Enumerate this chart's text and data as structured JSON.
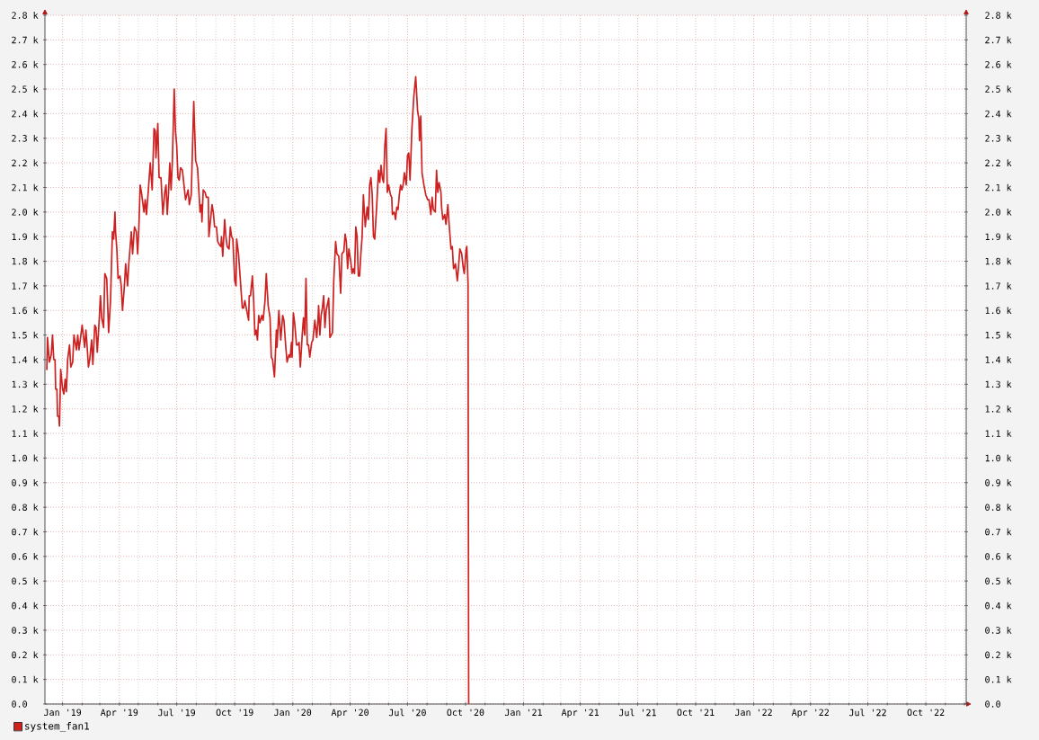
{
  "chart_data": {
    "type": "line",
    "x": [
      "2018-12-07",
      "2018-12-08",
      "2018-12-11",
      "2018-12-14",
      "2018-12-16",
      "2018-12-18",
      "2018-12-20",
      "2018-12-21",
      "2018-12-23",
      "2018-12-24",
      "2018-12-26",
      "2018-12-27",
      "2018-12-29",
      "2019-01-01",
      "2019-01-03",
      "2019-01-05",
      "2019-01-07",
      "2019-01-09",
      "2019-01-12",
      "2019-01-14",
      "2019-01-17",
      "2019-01-19",
      "2019-01-21",
      "2019-01-23",
      "2019-01-25",
      "2019-01-27",
      "2019-01-30",
      "2019-02-01",
      "2019-02-05",
      "2019-02-07",
      "2019-02-09",
      "2019-02-11",
      "2019-02-13",
      "2019-02-16",
      "2019-02-18",
      "2019-02-21",
      "2019-02-23",
      "2019-02-25",
      "2019-02-28",
      "2019-03-02",
      "2019-03-04",
      "2019-03-07",
      "2019-03-09",
      "2019-03-12",
      "2019-03-15",
      "2019-03-18",
      "2019-03-21",
      "2019-03-23",
      "2019-03-25",
      "2019-03-26",
      "2019-03-28",
      "2019-03-30",
      "2019-04-02",
      "2019-04-04",
      "2019-04-06",
      "2019-04-09",
      "2019-04-11",
      "2019-04-14",
      "2019-04-16",
      "2019-04-20",
      "2019-04-22",
      "2019-04-25",
      "2019-04-28",
      "2019-04-30",
      "2019-05-02",
      "2019-05-04",
      "2019-05-06",
      "2019-05-10",
      "2019-05-12",
      "2019-05-14",
      "2019-05-17",
      "2019-05-20",
      "2019-05-23",
      "2019-05-26",
      "2019-05-28",
      "2019-05-29",
      "2019-06-01",
      "2019-06-03",
      "2019-06-06",
      "2019-06-09",
      "2019-06-12",
      "2019-06-14",
      "2019-06-16",
      "2019-06-18",
      "2019-06-20",
      "2019-06-22",
      "2019-06-24",
      "2019-06-27",
      "2019-06-29",
      "2019-07-01",
      "2019-07-03",
      "2019-07-05",
      "2019-07-07",
      "2019-07-10",
      "2019-07-15",
      "2019-07-19",
      "2019-07-21",
      "2019-07-24",
      "2019-07-28",
      "2019-07-31",
      "2019-08-03",
      "2019-08-07",
      "2019-08-09",
      "2019-08-10",
      "2019-08-12",
      "2019-08-15",
      "2019-08-17",
      "2019-08-20",
      "2019-08-21",
      "2019-08-26",
      "2019-08-28",
      "2019-08-30",
      "2019-09-02",
      "2019-09-04",
      "2019-09-06",
      "2019-09-09",
      "2019-09-10",
      "2019-09-12",
      "2019-09-15",
      "2019-09-17",
      "2019-09-19",
      "2019-09-22",
      "2019-09-24",
      "2019-09-26",
      "2019-09-28",
      "2019-10-01",
      "2019-10-03",
      "2019-10-04",
      "2019-10-07",
      "2019-10-10",
      "2019-10-13",
      "2019-10-15",
      "2019-10-17",
      "2019-10-20",
      "2019-10-23",
      "2019-10-24",
      "2019-10-26",
      "2019-10-29",
      "2019-10-31",
      "2019-11-02",
      "2019-11-04",
      "2019-11-06",
      "2019-11-08",
      "2019-11-10",
      "2019-11-13",
      "2019-11-15",
      "2019-11-18",
      "2019-11-20",
      "2019-11-23",
      "2019-11-26",
      "2019-11-28",
      "2019-11-30",
      "2019-12-03",
      "2019-12-06",
      "2019-12-07",
      "2019-12-10",
      "2019-12-13",
      "2019-12-16",
      "2019-12-18",
      "2019-12-21",
      "2019-12-23",
      "2019-12-26",
      "2019-12-28",
      "2019-12-30",
      "2019-12-31",
      "2020-01-02",
      "2020-01-04",
      "2020-01-07",
      "2020-01-09",
      "2020-01-11",
      "2020-01-13",
      "2020-01-16",
      "2020-01-18",
      "2020-01-20",
      "2020-01-22",
      "2020-01-24",
      "2020-01-26",
      "2020-01-28",
      "2020-01-31",
      "2020-02-02",
      "2020-02-05",
      "2020-02-08",
      "2020-02-10",
      "2020-02-11",
      "2020-02-13",
      "2020-02-15",
      "2020-02-17",
      "2020-02-19",
      "2020-02-21",
      "2020-02-23",
      "2020-02-27",
      "2020-02-29",
      "2020-03-04",
      "2020-03-06",
      "2020-03-09",
      "2020-03-11",
      "2020-03-14",
      "2020-03-17",
      "2020-03-19",
      "2020-03-22",
      "2020-03-24",
      "2020-03-26",
      "2020-03-28",
      "2020-03-30",
      "2020-04-02",
      "2020-04-04",
      "2020-04-06",
      "2020-04-08",
      "2020-04-10",
      "2020-04-12",
      "2020-04-14",
      "2020-04-16",
      "2020-04-18",
      "2020-04-20",
      "2020-04-22",
      "2020-04-25",
      "2020-04-28",
      "2020-04-30",
      "2020-05-02",
      "2020-05-04",
      "2020-05-06",
      "2020-05-08",
      "2020-05-10",
      "2020-05-13",
      "2020-05-16",
      "2020-05-18",
      "2020-05-20",
      "2020-05-22",
      "2020-05-24",
      "2020-05-26",
      "2020-05-28",
      "2020-05-30",
      "2020-06-01",
      "2020-06-04",
      "2020-06-06",
      "2020-06-07",
      "2020-06-10",
      "2020-06-12",
      "2020-06-14",
      "2020-06-16",
      "2020-06-18",
      "2020-06-20",
      "2020-06-22",
      "2020-06-24",
      "2020-06-26",
      "2020-06-29",
      "2020-07-01",
      "2020-07-03",
      "2020-07-05",
      "2020-07-08",
      "2020-07-11",
      "2020-07-14",
      "2020-07-17",
      "2020-07-19",
      "2020-07-20",
      "2020-07-22",
      "2020-07-24",
      "2020-07-27",
      "2020-07-30",
      "2020-08-02",
      "2020-08-04",
      "2020-08-07",
      "2020-08-09",
      "2020-08-11",
      "2020-08-14",
      "2020-08-16",
      "2020-08-18",
      "2020-08-20",
      "2020-08-23",
      "2020-08-24",
      "2020-08-26",
      "2020-08-29",
      "2020-08-31",
      "2020-09-03",
      "2020-09-05",
      "2020-09-08",
      "2020-09-10",
      "2020-09-12",
      "2020-09-14",
      "2020-09-15",
      "2020-09-18",
      "2020-09-20",
      "2020-09-22",
      "2020-09-25",
      "2020-09-27",
      "2020-09-29",
      "2020-10-02",
      "2020-10-03",
      "2020-10-05",
      "2020-10-06"
    ],
    "series": [
      {
        "name": "system_fan1",
        "color": "#cc2222",
        "values": [
          1360,
          1490,
          1390,
          1420,
          1500,
          1400,
          1400,
          1280,
          1280,
          1170,
          1170,
          1130,
          1360,
          1280,
          1260,
          1320,
          1270,
          1400,
          1460,
          1370,
          1390,
          1500,
          1470,
          1440,
          1500,
          1440,
          1500,
          1540,
          1450,
          1520,
          1450,
          1370,
          1400,
          1480,
          1380,
          1540,
          1530,
          1430,
          1560,
          1660,
          1570,
          1530,
          1750,
          1730,
          1510,
          1640,
          1920,
          1890,
          2000,
          1920,
          1850,
          1730,
          1740,
          1700,
          1600,
          1700,
          1790,
          1700,
          1790,
          1920,
          1830,
          1940,
          1920,
          1830,
          1940,
          2110,
          2080,
          2000,
          2050,
          1990,
          2090,
          2200,
          2090,
          2340,
          2330,
          2220,
          2360,
          2140,
          2140,
          1990,
          2080,
          2110,
          1990,
          2080,
          2200,
          2090,
          2200,
          2500,
          2330,
          2270,
          2140,
          2130,
          2180,
          2170,
          2050,
          2090,
          2030,
          2070,
          2450,
          2210,
          2180,
          2000,
          2030,
          1960,
          2090,
          2080,
          2060,
          2060,
          1900,
          2030,
          2000,
          1940,
          1940,
          1880,
          1870,
          1860,
          1900,
          1820,
          1970,
          1900,
          1860,
          1850,
          1940,
          1900,
          1890,
          1720,
          1700,
          1890,
          1830,
          1720,
          1610,
          1610,
          1640,
          1600,
          1560,
          1660,
          1660,
          1740,
          1640,
          1500,
          1520,
          1480,
          1580,
          1550,
          1580,
          1560,
          1640,
          1750,
          1620,
          1570,
          1410,
          1400,
          1330,
          1520,
          1450,
          1600,
          1480,
          1580,
          1560,
          1450,
          1390,
          1420,
          1410,
          1470,
          1410,
          1590,
          1550,
          1460,
          1460,
          1470,
          1370,
          1500,
          1570,
          1500,
          1730,
          1460,
          1460,
          1410,
          1470,
          1480,
          1560,
          1490,
          1560,
          1620,
          1500,
          1580,
          1610,
          1660,
          1530,
          1600,
          1650,
          1490,
          1510,
          1720,
          1880,
          1830,
          1820,
          1670,
          1830,
          1840,
          1910,
          1880,
          1770,
          1850,
          1800,
          1750,
          1770,
          1750,
          1940,
          1900,
          1740,
          1740,
          1830,
          1900,
          2070,
          1940,
          2020,
          1970,
          2110,
          2140,
          2070,
          1900,
          1890,
          2020,
          2170,
          2120,
          2190,
          2140,
          2120,
          2270,
          2340,
          2080,
          2110,
          2070,
          2060,
          1990,
          2000,
          1970,
          2020,
          2010,
          2070,
          2110,
          2090,
          2110,
          2160,
          2110,
          2230,
          2240,
          2130,
          2340,
          2470,
          2550,
          2410,
          2380,
          2290,
          2390,
          2160,
          2110,
          2070,
          2050,
          2050,
          1990,
          2060,
          2010,
          2000,
          2170,
          2080,
          2120,
          2080,
          2020,
          1970,
          1990,
          1950,
          2030,
          1950,
          1850,
          1860,
          1770,
          1780,
          1790,
          1720,
          1780,
          1850,
          1830,
          1780,
          1750,
          1850,
          1860,
          1710,
          0
        ]
      }
    ],
    "xlim": [
      "2018-12-04",
      "2022-12-04"
    ],
    "xticks": [
      {
        "value": "2019-01-01",
        "label": "Jan '19"
      },
      {
        "value": "2019-04-01",
        "label": "Apr '19"
      },
      {
        "value": "2019-07-01",
        "label": "Jul '19"
      },
      {
        "value": "2019-10-01",
        "label": "Oct '19"
      },
      {
        "value": "2020-01-01",
        "label": "Jan '20"
      },
      {
        "value": "2020-04-01",
        "label": "Apr '20"
      },
      {
        "value": "2020-07-01",
        "label": "Jul '20"
      },
      {
        "value": "2020-10-01",
        "label": "Oct '20"
      },
      {
        "value": "2021-01-01",
        "label": "Jan '21"
      },
      {
        "value": "2021-04-01",
        "label": "Apr '21"
      },
      {
        "value": "2021-07-01",
        "label": "Jul '21"
      },
      {
        "value": "2021-10-01",
        "label": "Oct '21"
      },
      {
        "value": "2022-01-01",
        "label": "Jan '22"
      },
      {
        "value": "2022-04-01",
        "label": "Apr '22"
      },
      {
        "value": "2022-07-01",
        "label": "Jul '22"
      },
      {
        "value": "2022-10-01",
        "label": "Oct '22"
      }
    ],
    "ylim": [
      0,
      2800
    ],
    "yticks": [
      {
        "value": 0,
        "label": "0.0"
      },
      {
        "value": 100,
        "label": "0.1 k"
      },
      {
        "value": 200,
        "label": "0.2 k"
      },
      {
        "value": 300,
        "label": "0.3 k"
      },
      {
        "value": 400,
        "label": "0.4 k"
      },
      {
        "value": 500,
        "label": "0.5 k"
      },
      {
        "value": 600,
        "label": "0.6 k"
      },
      {
        "value": 700,
        "label": "0.7 k"
      },
      {
        "value": 800,
        "label": "0.8 k"
      },
      {
        "value": 900,
        "label": "0.9 k"
      },
      {
        "value": 1000,
        "label": "1.0 k"
      },
      {
        "value": 1100,
        "label": "1.1 k"
      },
      {
        "value": 1200,
        "label": "1.2 k"
      },
      {
        "value": 1300,
        "label": "1.3 k"
      },
      {
        "value": 1400,
        "label": "1.4 k"
      },
      {
        "value": 1500,
        "label": "1.5 k"
      },
      {
        "value": 1600,
        "label": "1.6 k"
      },
      {
        "value": 1700,
        "label": "1.7 k"
      },
      {
        "value": 1800,
        "label": "1.8 k"
      },
      {
        "value": 1900,
        "label": "1.9 k"
      },
      {
        "value": 2000,
        "label": "2.0 k"
      },
      {
        "value": 2100,
        "label": "2.1 k"
      },
      {
        "value": 2200,
        "label": "2.2 k"
      },
      {
        "value": 2300,
        "label": "2.3 k"
      },
      {
        "value": 2400,
        "label": "2.4 k"
      },
      {
        "value": 2500,
        "label": "2.5 k"
      },
      {
        "value": 2600,
        "label": "2.6 k"
      },
      {
        "value": 2700,
        "label": "2.7 k"
      },
      {
        "value": 2800,
        "label": "2.8 k"
      }
    ],
    "y2lim": [
      0,
      2800
    ],
    "y2ticks": [
      {
        "value": 0,
        "label": "0.0"
      },
      {
        "value": 100,
        "label": "0.1 k"
      },
      {
        "value": 200,
        "label": "0.2 k"
      },
      {
        "value": 300,
        "label": "0.3 k"
      },
      {
        "value": 400,
        "label": "0.4 k"
      },
      {
        "value": 500,
        "label": "0.5 k"
      },
      {
        "value": 600,
        "label": "0.6 k"
      },
      {
        "value": 700,
        "label": "0.7 k"
      },
      {
        "value": 800,
        "label": "0.8 k"
      },
      {
        "value": 900,
        "label": "0.9 k"
      },
      {
        "value": 1000,
        "label": "1.0 k"
      },
      {
        "value": 1100,
        "label": "1.1 k"
      },
      {
        "value": 1200,
        "label": "1.2 k"
      },
      {
        "value": 1300,
        "label": "1.3 k"
      },
      {
        "value": 1400,
        "label": "1.4 k"
      },
      {
        "value": 1500,
        "label": "1.5 k"
      },
      {
        "value": 1600,
        "label": "1.6 k"
      },
      {
        "value": 1700,
        "label": "1.7 k"
      },
      {
        "value": 1800,
        "label": "1.8 k"
      },
      {
        "value": 1900,
        "label": "1.9 k"
      },
      {
        "value": 2000,
        "label": "2.0 k"
      },
      {
        "value": 2100,
        "label": "2.1 k"
      },
      {
        "value": 2200,
        "label": "2.2 k"
      },
      {
        "value": 2300,
        "label": "2.3 k"
      },
      {
        "value": 2400,
        "label": "2.4 k"
      },
      {
        "value": 2500,
        "label": "2.5 k"
      },
      {
        "value": 2600,
        "label": "2.6 k"
      },
      {
        "value": 2700,
        "label": "2.7 k"
      },
      {
        "value": 2800,
        "label": "2.8 k"
      }
    ],
    "grid": true,
    "legend": "bottom left",
    "line_style": "solid"
  }
}
